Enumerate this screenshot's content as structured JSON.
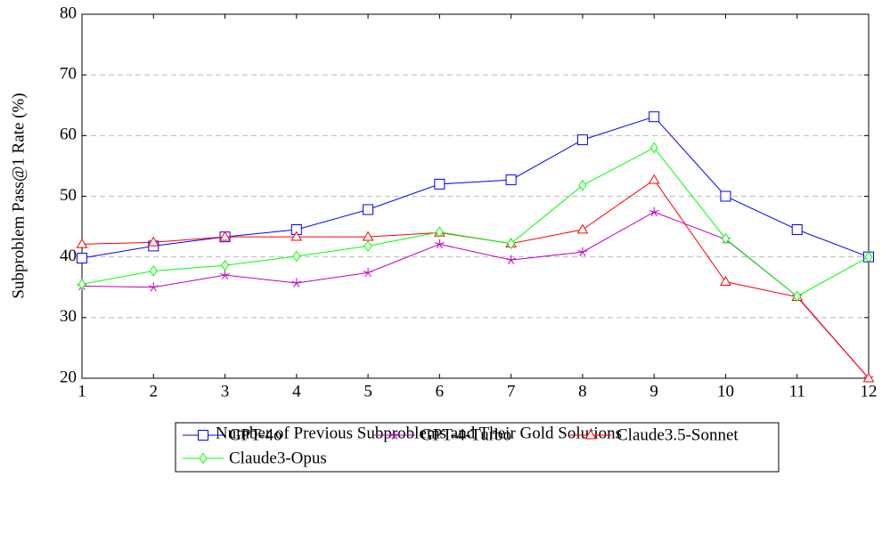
{
  "chart_data": {
    "type": "line",
    "xlabel": "Number of Previous Subproblems and Their Gold Solutions",
    "ylabel": "Subproblem Pass@1 Rate (%)",
    "x": [
      1,
      2,
      3,
      4,
      5,
      6,
      7,
      8,
      9,
      10,
      11,
      12
    ],
    "xlim": [
      1,
      12
    ],
    "xticks": [
      1,
      2,
      3,
      4,
      5,
      6,
      7,
      8,
      9,
      10,
      11,
      12
    ],
    "ylim": [
      20,
      80
    ],
    "yticks": [
      20,
      30,
      40,
      50,
      60,
      70,
      80
    ],
    "grid": true,
    "series": [
      {
        "name": "GPT-4o",
        "color": "#0000ff",
        "marker": "square",
        "values": [
          39.8,
          41.8,
          43.3,
          44.5,
          47.8,
          52,
          52.7,
          59.3,
          63.1,
          50,
          44.5,
          40
        ]
      },
      {
        "name": "GPT-4-Turbo",
        "color": "#bf00bf",
        "marker": "star",
        "values": [
          35.2,
          35,
          37,
          35.7,
          37.4,
          42.1,
          39.5,
          40.8,
          47.4,
          42.9,
          33.5,
          20
        ]
      },
      {
        "name": "Claude3.5-Sonnet",
        "color": "#ff0000",
        "marker": "triangle",
        "values": [
          42.1,
          42.4,
          43.3,
          43.3,
          43.3,
          44,
          42.2,
          44.5,
          52.7,
          35.9,
          33.4,
          20
        ]
      },
      {
        "name": "Claude3-Opus",
        "color": "#00ff00",
        "marker": "diamond",
        "values": [
          35.5,
          37.7,
          38.6,
          40.1,
          41.8,
          44.1,
          42.2,
          51.8,
          58,
          43,
          33.5,
          40
        ]
      }
    ]
  }
}
